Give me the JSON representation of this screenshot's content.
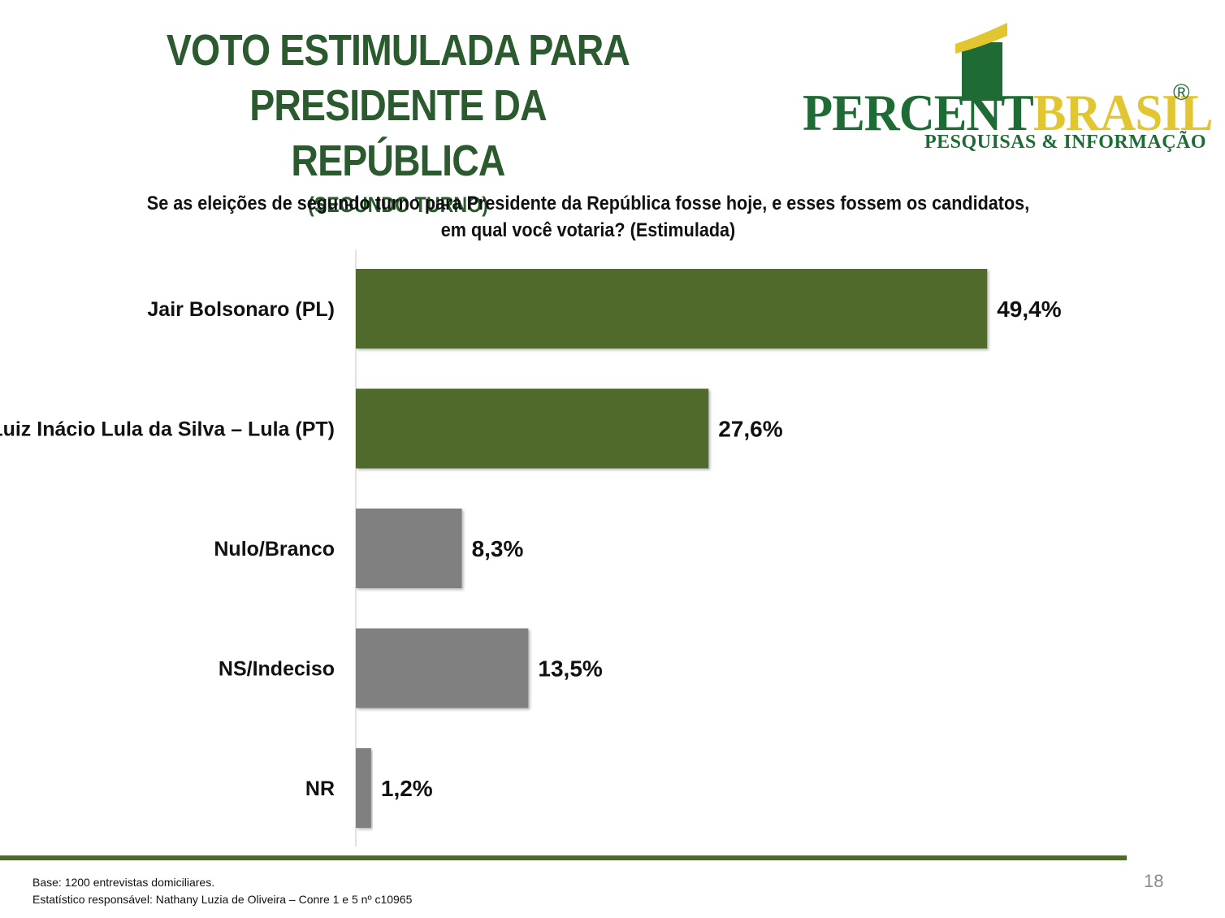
{
  "header": {
    "title_lines": [
      "VOTO ESTIMULADA PARA",
      "PRESIDENTE DA REPÚBLICA"
    ],
    "subtitle": "(SEGUNDO TURNO)"
  },
  "logo": {
    "word_part1": "PERCENT",
    "word_part2": "BRASIL",
    "registered": "®",
    "tagline": "PESQUISAS & INFORMAÇÃO",
    "colors": {
      "green": "#1e6b35",
      "gold": "#e2c631"
    }
  },
  "question": {
    "line1": "Se as eleições de segundo turno para Presidente da República fosse hoje, e esses fossem os candidatos,",
    "line2": "em qual você votaria? (Estimulada)"
  },
  "chart_data": {
    "type": "bar",
    "orientation": "horizontal",
    "categories": [
      "Jair Bolsonaro (PL)",
      "Luiz Inácio Lula da Silva – Lula (PT)",
      "Nulo/Branco",
      "NS/Indeciso",
      "NR"
    ],
    "values": [
      49.4,
      27.6,
      8.3,
      13.5,
      1.2
    ],
    "value_labels": [
      "49,4%",
      "27,6%",
      "8,3%",
      "13,5%",
      "1,2%"
    ],
    "colors": [
      "#4f6b2c",
      "#4f6b2c",
      "#808080",
      "#808080",
      "#808080"
    ],
    "xlim": [
      0,
      60
    ],
    "grid": false,
    "legend": "none"
  },
  "footer": {
    "base": "Base: 1200 entrevistas domiciliares.",
    "statistician": "Estatístico responsável: Nathany Luzia de Oliveira – Conre 1 e 5 nº c10965",
    "page_number": "18"
  }
}
